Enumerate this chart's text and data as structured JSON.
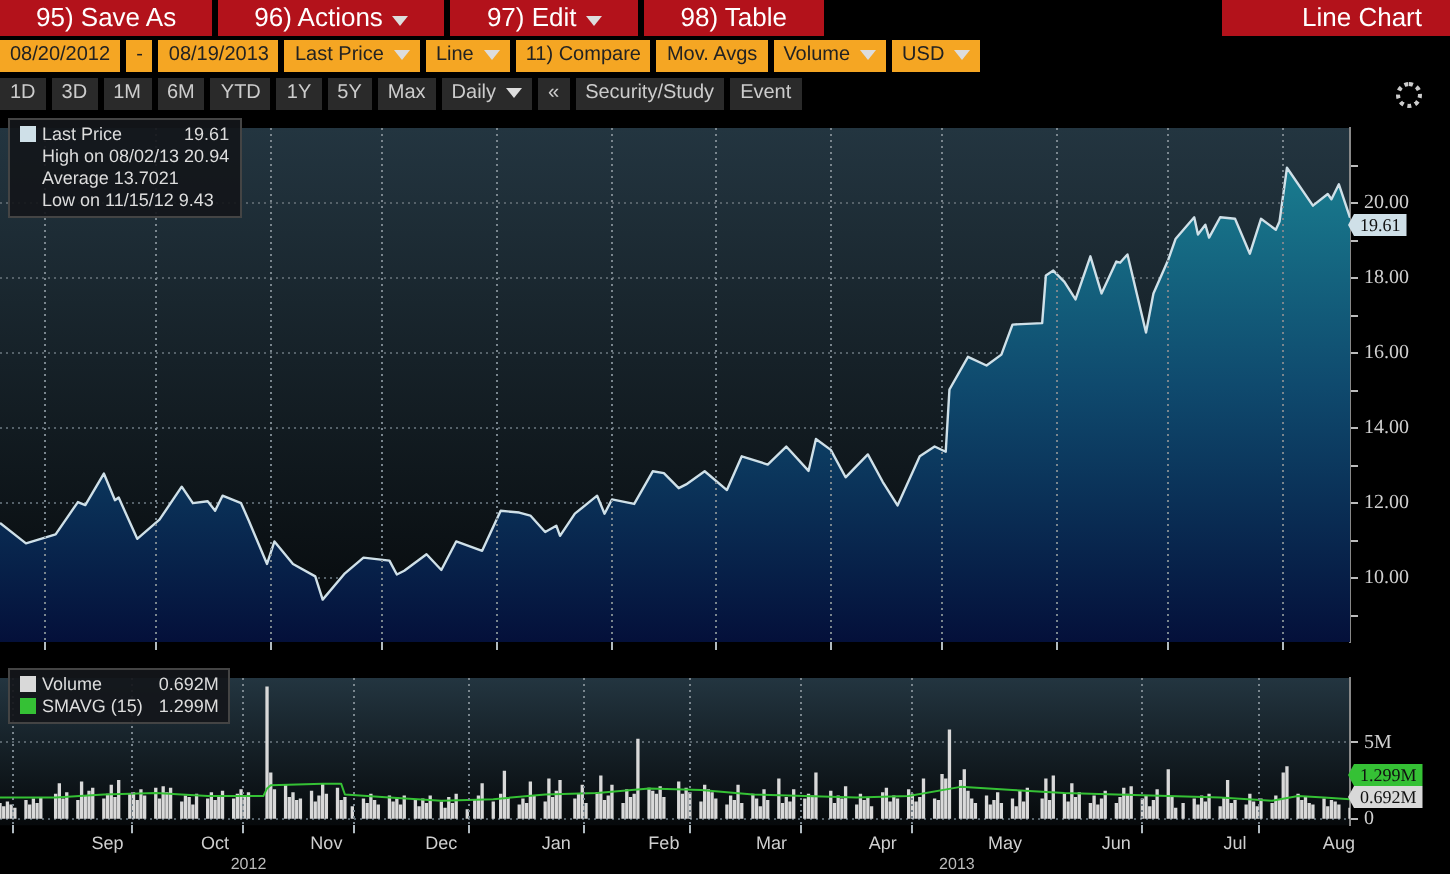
{
  "chart_data": [
    {
      "type": "other",
      "title": "Line Chart",
      "annotations": [
        "95) Save As",
        "96) Actions",
        "97) Edit",
        "98) Table",
        "08/20/2012",
        "-",
        "08/19/2013",
        "Last Price",
        "Line",
        "11) Compare",
        "Mov. Avgs",
        "Volume",
        "USD",
        "1D",
        "3D",
        "1M",
        "6M",
        "YTD",
        "1Y",
        "5Y",
        "Max",
        "Daily",
        "«",
        "Security/Study",
        "Event"
      ]
    },
    {
      "type": "area",
      "legend": "top left",
      "grid": true,
      "tick_labels": "y",
      "x": [
        "2012-08-20",
        "2012-08-27",
        "2012-09-04",
        "2012-09-10",
        "2012-09-12",
        "2012-09-17",
        "2012-09-20",
        "2012-09-21",
        "2012-09-26",
        "2012-10-02",
        "2012-10-08",
        "2012-10-11",
        "2012-10-15",
        "2012-10-17",
        "2012-10-19",
        "2012-10-24",
        "2012-10-26",
        "2012-10-31",
        "2012-11-02",
        "2012-11-07",
        "2012-11-13",
        "2012-11-15",
        "2012-11-21",
        "2012-11-26",
        "2012-12-03",
        "2012-12-05",
        "2012-12-07",
        "2012-12-13",
        "2012-12-17",
        "2012-12-21",
        "2012-12-28",
        "2013-01-02",
        "2013-01-07",
        "2013-01-10",
        "2013-01-14",
        "2013-01-17",
        "2013-01-18",
        "2013-01-22",
        "2013-01-28",
        "2013-01-30",
        "2013-02-01",
        "2013-02-07",
        "2013-02-12",
        "2013-02-15",
        "2013-02-19",
        "2013-02-21",
        "2013-02-26",
        "2013-03-04",
        "2013-03-08",
        "2013-03-15",
        "2013-03-20",
        "2013-03-26",
        "2013-03-28",
        "2013-04-01",
        "2013-04-05",
        "2013-04-11",
        "2013-04-15",
        "2013-04-19",
        "2013-04-25",
        "2013-04-29",
        "2013-05-02",
        "2013-05-03",
        "2013-05-08",
        "2013-05-13",
        "2013-05-17",
        "2013-05-20",
        "2013-05-28",
        "2013-05-29",
        "2013-05-31",
        "2013-06-03",
        "2013-06-06",
        "2013-06-10",
        "2013-06-13",
        "2013-06-17",
        "2013-06-18",
        "2013-06-20",
        "2013-06-25",
        "2013-06-27",
        "2013-07-01",
        "2013-07-03",
        "2013-07-08",
        "2013-07-09",
        "2013-07-11",
        "2013-07-12",
        "2013-07-15",
        "2013-07-19",
        "2013-07-23",
        "2013-07-26",
        "2013-07-30",
        "2013-07-31",
        "2013-08-02",
        "2013-08-09",
        "2013-08-13",
        "2013-08-14",
        "2013-08-16",
        "2013-08-19"
      ],
      "series": [
        {
          "name": "Last Price",
          "color": "#cfe0e8",
          "values": [
            11.47,
            10.93,
            11.17,
            12.03,
            11.95,
            12.79,
            12.08,
            12.15,
            11.05,
            11.56,
            12.44,
            12.0,
            12.05,
            11.8,
            12.2,
            12.0,
            11.55,
            10.38,
            10.98,
            10.38,
            10.05,
            9.43,
            10.13,
            10.55,
            10.47,
            10.1,
            10.2,
            10.64,
            10.22,
            10.98,
            10.73,
            11.8,
            11.75,
            11.67,
            11.23,
            11.4,
            11.13,
            11.72,
            12.2,
            11.72,
            12.1,
            11.98,
            12.85,
            12.8,
            12.4,
            12.5,
            12.85,
            12.35,
            13.25,
            13.03,
            13.51,
            12.86,
            13.71,
            13.42,
            12.69,
            13.3,
            12.57,
            11.94,
            13.25,
            13.51,
            13.37,
            15.03,
            15.9,
            15.67,
            15.96,
            16.76,
            16.8,
            18.07,
            18.2,
            17.9,
            17.43,
            18.58,
            17.59,
            18.44,
            18.41,
            18.63,
            16.55,
            17.59,
            18.49,
            19.05,
            19.62,
            19.16,
            19.42,
            19.08,
            19.62,
            19.58,
            18.65,
            19.58,
            19.29,
            19.51,
            20.94,
            19.93,
            20.24,
            20.1,
            20.5,
            19.61
          ]
        }
      ],
      "xlim": [
        "2012-08-20",
        "2013-08-19"
      ],
      "xticks": [
        {
          "value": "2012-09-01",
          "label": null
        },
        {
          "value": "2012-10-01",
          "label": null
        },
        {
          "value": "2012-11-01",
          "label": null
        },
        {
          "value": "2012-12-01",
          "label": null
        },
        {
          "value": "2013-01-01",
          "label": null
        },
        {
          "value": "2013-02-01",
          "label": null
        },
        {
          "value": "2013-03-01",
          "label": null
        },
        {
          "value": "2013-04-01",
          "label": null
        },
        {
          "value": "2013-05-01",
          "label": null
        },
        {
          "value": "2013-06-01",
          "label": null
        },
        {
          "value": "2013-07-01",
          "label": null
        },
        {
          "value": "2013-08-01",
          "label": null
        }
      ],
      "ylim": [
        8.3,
        22.0
      ],
      "yticks": [
        {
          "value": 9,
          "label": null
        },
        {
          "value": 10,
          "label": "10.00"
        },
        {
          "value": 11,
          "label": null
        },
        {
          "value": 12,
          "label": "12.00"
        },
        {
          "value": 13,
          "label": null
        },
        {
          "value": 14,
          "label": "14.00"
        },
        {
          "value": 15,
          "label": null
        },
        {
          "value": 16,
          "label": "16.00"
        },
        {
          "value": 17,
          "label": null
        },
        {
          "value": 18,
          "label": "18.00"
        },
        {
          "value": 19,
          "label": null
        },
        {
          "value": 20,
          "label": "20.00"
        },
        {
          "value": 21,
          "label": null
        }
      ],
      "annotations": [
        {
          "text": "19.61",
          "x": "2013-08-19",
          "y": 19.61
        },
        "19.61",
        "High on 08/02/13 20.94",
        "Average 13.7021",
        "Low on 11/15/12 9.43"
      ]
    },
    {
      "type": "bar",
      "legend": "top left",
      "grid": true,
      "x": [
        "2012-08-20",
        "2012-08-21",
        "2012-08-22",
        "2012-08-23",
        "2012-08-24",
        "2012-08-27",
        "2012-08-28",
        "2012-08-29",
        "2012-08-30",
        "2012-08-31",
        "2012-09-04",
        "2012-09-05",
        "2012-09-06",
        "2012-09-07",
        "2012-09-10",
        "2012-09-11",
        "2012-09-12",
        "2012-09-13",
        "2012-09-14",
        "2012-09-17",
        "2012-09-18",
        "2012-09-19",
        "2012-09-20",
        "2012-09-21",
        "2012-09-24",
        "2012-09-25",
        "2012-09-26",
        "2012-09-27",
        "2012-09-28",
        "2012-10-01",
        "2012-10-02",
        "2012-10-03",
        "2012-10-04",
        "2012-10-05",
        "2012-10-08",
        "2012-10-09",
        "2012-10-10",
        "2012-10-11",
        "2012-10-12",
        "2012-10-15",
        "2012-10-16",
        "2012-10-17",
        "2012-10-18",
        "2012-10-19",
        "2012-10-22",
        "2012-10-23",
        "2012-10-24",
        "2012-10-25",
        "2012-10-26",
        "2012-10-31",
        "2012-11-01",
        "2012-11-02",
        "2012-11-05",
        "2012-11-06",
        "2012-11-07",
        "2012-11-08",
        "2012-11-09",
        "2012-11-12",
        "2012-11-13",
        "2012-11-14",
        "2012-11-15",
        "2012-11-16",
        "2012-11-19",
        "2012-11-20",
        "2012-11-21",
        "2012-11-23",
        "2012-11-26",
        "2012-11-27",
        "2012-11-28",
        "2012-11-29",
        "2012-11-30",
        "2012-12-03",
        "2012-12-04",
        "2012-12-05",
        "2012-12-06",
        "2012-12-07",
        "2012-12-10",
        "2012-12-11",
        "2012-12-12",
        "2012-12-13",
        "2012-12-14",
        "2012-12-17",
        "2012-12-18",
        "2012-12-19",
        "2012-12-20",
        "2012-12-21",
        "2012-12-24",
        "2012-12-26",
        "2012-12-27",
        "2012-12-28",
        "2012-12-31",
        "2013-01-02",
        "2013-01-03",
        "2013-01-04",
        "2013-01-07",
        "2013-01-08",
        "2013-01-09",
        "2013-01-10",
        "2013-01-11",
        "2013-01-14",
        "2013-01-15",
        "2013-01-16",
        "2013-01-17",
        "2013-01-18",
        "2013-01-22",
        "2013-01-23",
        "2013-01-24",
        "2013-01-25",
        "2013-01-28",
        "2013-01-29",
        "2013-01-30",
        "2013-01-31",
        "2013-02-01",
        "2013-02-04",
        "2013-02-05",
        "2013-02-06",
        "2013-02-07",
        "2013-02-08",
        "2013-02-11",
        "2013-02-12",
        "2013-02-13",
        "2013-02-14",
        "2013-02-15",
        "2013-02-19",
        "2013-02-20",
        "2013-02-21",
        "2013-02-22",
        "2013-02-25",
        "2013-02-26",
        "2013-02-27",
        "2013-02-28",
        "2013-03-01",
        "2013-03-04",
        "2013-03-05",
        "2013-03-06",
        "2013-03-07",
        "2013-03-08",
        "2013-03-11",
        "2013-03-12",
        "2013-03-13",
        "2013-03-14",
        "2013-03-15",
        "2013-03-18",
        "2013-03-19",
        "2013-03-20",
        "2013-03-21",
        "2013-03-22",
        "2013-03-25",
        "2013-03-26",
        "2013-03-27",
        "2013-03-28",
        "2013-04-01",
        "2013-04-02",
        "2013-04-03",
        "2013-04-04",
        "2013-04-05",
        "2013-04-08",
        "2013-04-09",
        "2013-04-10",
        "2013-04-11",
        "2013-04-12",
        "2013-04-15",
        "2013-04-16",
        "2013-04-17",
        "2013-04-18",
        "2013-04-19",
        "2013-04-22",
        "2013-04-23",
        "2013-04-24",
        "2013-04-25",
        "2013-04-26",
        "2013-04-29",
        "2013-04-30",
        "2013-05-01",
        "2013-05-02",
        "2013-05-03",
        "2013-05-06",
        "2013-05-07",
        "2013-05-08",
        "2013-05-09",
        "2013-05-10",
        "2013-05-13",
        "2013-05-14",
        "2013-05-15",
        "2013-05-16",
        "2013-05-17",
        "2013-05-20",
        "2013-05-21",
        "2013-05-22",
        "2013-05-23",
        "2013-05-24",
        "2013-05-28",
        "2013-05-29",
        "2013-05-30",
        "2013-05-31",
        "2013-06-03",
        "2013-06-04",
        "2013-06-05",
        "2013-06-06",
        "2013-06-07",
        "2013-06-10",
        "2013-06-11",
        "2013-06-12",
        "2013-06-13",
        "2013-06-14",
        "2013-06-17",
        "2013-06-18",
        "2013-06-19",
        "2013-06-20",
        "2013-06-21",
        "2013-06-24",
        "2013-06-25",
        "2013-06-26",
        "2013-06-27",
        "2013-06-28",
        "2013-07-01",
        "2013-07-02",
        "2013-07-03",
        "2013-07-05",
        "2013-07-08",
        "2013-07-09",
        "2013-07-10",
        "2013-07-11",
        "2013-07-12",
        "2013-07-15",
        "2013-07-16",
        "2013-07-17",
        "2013-07-18",
        "2013-07-19",
        "2013-07-22",
        "2013-07-23",
        "2013-07-24",
        "2013-07-25",
        "2013-07-26",
        "2013-07-29",
        "2013-07-30",
        "2013-07-31",
        "2013-08-01",
        "2013-08-02",
        "2013-08-05",
        "2013-08-06",
        "2013-08-07",
        "2013-08-08",
        "2013-08-09",
        "2013-08-12",
        "2013-08-13",
        "2013-08-14",
        "2013-08-15",
        "2013-08-16",
        "2013-08-19"
      ],
      "series": [
        {
          "name": "Volume",
          "color": "#d9d9d9",
          "values": [
            1.0,
            0.8,
            1.1,
            0.9,
            0.7,
            1.2,
            0.9,
            1.3,
            1.0,
            1.4,
            1.6,
            2.3,
            1.3,
            1.7,
            1.2,
            2.4,
            1.5,
            1.8,
            2.0,
            1.3,
            1.6,
            2.2,
            1.4,
            2.5,
            1.6,
            1.7,
            1.2,
            1.9,
            1.5,
            2.0,
            1.3,
            2.1,
            1.7,
            2.0,
            1.1,
            1.5,
            1.4,
            0.9,
            1.6,
            1.3,
            1.7,
            1.2,
            1.5,
            1.8,
            1.3,
            1.6,
            1.9,
            1.4,
            1.7,
            8.6,
            3.0,
            1.9,
            2.2,
            1.4,
            1.7,
            1.2,
            1.3,
            1.8,
            1.1,
            1.5,
            2.3,
            1.6,
            2.0,
            1.2,
            1.4,
            0.8,
            1.3,
            1.0,
            1.6,
            1.2,
            0.9,
            1.5,
            1.1,
            1.4,
            0.9,
            1.5,
            1.2,
            0.8,
            1.3,
            1.0,
            1.5,
            1.1,
            0.7,
            1.4,
            1.0,
            1.6,
            0.6,
            1.2,
            1.5,
            2.3,
            1.1,
            1.6,
            3.1,
            1.4,
            0.9,
            1.3,
            1.0,
            2.4,
            1.5,
            1.1,
            2.6,
            1.4,
            1.8,
            2.5,
            1.3,
            1.6,
            2.2,
            1.0,
            1.7,
            2.8,
            1.2,
            1.5,
            2.2,
            1.0,
            1.9,
            1.4,
            1.6,
            5.2,
            2.0,
            1.8,
            1.6,
            2.1,
            1.4,
            2.4,
            1.6,
            2.0,
            1.7,
            1.1,
            2.2,
            1.9,
            1.7,
            1.3,
            0.9,
            1.5,
            1.2,
            2.2,
            1.0,
            1.6,
            1.3,
            0.8,
            1.9,
            1.2,
            2.6,
            1.0,
            1.4,
            1.1,
            1.9,
            1.3,
            1.6,
            1.5,
            3.0,
            1.8,
            1.0,
            1.5,
            1.3,
            2.1,
            0.9,
            1.6,
            1.2,
            1.4,
            0.8,
            1.7,
            2.0,
            1.1,
            1.5,
            1.3,
            1.9,
            1.6,
            1.1,
            1.4,
            2.6,
            1.3,
            1.2,
            2.9,
            2.6,
            5.8,
            2.5,
            3.2,
            1.8,
            1.3,
            1.0,
            1.5,
            0.9,
            1.2,
            1.7,
            1.0,
            1.3,
            0.8,
            1.8,
            1.1,
            2.0,
            1.3,
            2.6,
            1.2,
            2.8,
            1.6,
            1.1,
            2.3,
            1.4,
            1.7,
            1.0,
            1.5,
            0.9,
            1.3,
            1.8,
            1.0,
            1.4,
            2.0,
            1.6,
            2.1,
            1.3,
            1.5,
            0.8,
            1.2,
            1.9,
            3.2,
            1.4,
            0.7,
            1.0,
            1.3,
            0.9,
            1.5,
            1.1,
            1.6,
            0.8,
            1.4,
            2.5,
            1.0,
            1.2,
            0.9,
            1.6,
            1.1,
            0.8,
            1.3,
            1.0,
            1.5,
            1.2,
            3.0,
            3.4,
            1.6,
            1.2,
            1.4,
            1.0,
            0.9,
            1.3,
            0.8,
            1.2,
            1.1,
            0.9,
            0.692
          ]
        },
        {
          "name": "SMAVG (15)",
          "type": "line",
          "color": "#35c135",
          "x": [
            "2012-08-20",
            "2012-09-04",
            "2012-09-17",
            "2012-10-01",
            "2012-10-15",
            "2012-10-30",
            "2012-10-31",
            "2012-11-01",
            "2012-11-15",
            "2012-11-20",
            "2012-11-21",
            "2012-12-03",
            "2012-12-17",
            "2012-12-31",
            "2013-01-14",
            "2013-01-28",
            "2013-02-11",
            "2013-02-25",
            "2013-03-11",
            "2013-03-25",
            "2013-04-08",
            "2013-04-22",
            "2013-05-06",
            "2013-05-20",
            "2013-06-03",
            "2013-06-17",
            "2013-07-01",
            "2013-07-15",
            "2013-07-29",
            "2013-08-05",
            "2013-08-12",
            "2013-08-19"
          ],
          "values": [
            1.4,
            1.4,
            1.6,
            1.7,
            1.5,
            1.5,
            2.0,
            2.2,
            2.3,
            2.3,
            1.6,
            1.4,
            1.2,
            1.3,
            1.6,
            1.7,
            2.0,
            1.9,
            1.6,
            1.5,
            1.4,
            1.5,
            2.1,
            1.9,
            1.7,
            1.6,
            1.5,
            1.4,
            1.2,
            1.5,
            1.4,
            1.299
          ]
        }
      ],
      "xlim": [
        "2012-08-20",
        "2013-08-19"
      ],
      "xticks": [
        {
          "value": "2012-09-01",
          "label": null
        },
        {
          "value": "2012-09-18",
          "label": "Sep"
        },
        {
          "value": "2012-10-01",
          "label": null
        },
        {
          "value": "2012-10-17",
          "label": "Oct"
        },
        {
          "value": "2012-11-01",
          "label": null
        },
        {
          "value": "2012-11-16",
          "label": "Nov"
        },
        {
          "value": "2012-12-01",
          "label": null
        },
        {
          "value": "2012-12-17",
          "label": "Dec"
        },
        {
          "value": "2013-01-01",
          "label": null
        },
        {
          "value": "2013-01-17",
          "label": "Jan"
        },
        {
          "value": "2013-02-01",
          "label": null
        },
        {
          "value": "2013-02-15",
          "label": "Feb"
        },
        {
          "value": "2013-03-01",
          "label": null
        },
        {
          "value": "2013-03-16",
          "label": "Mar"
        },
        {
          "value": "2013-04-01",
          "label": null
        },
        {
          "value": "2013-04-15",
          "label": "Apr"
        },
        {
          "value": "2013-05-01",
          "label": null
        },
        {
          "value": "2013-05-18",
          "label": "May"
        },
        {
          "value": "2013-06-17",
          "label": "Jun"
        },
        {
          "value": "2013-07-01",
          "label": null
        },
        {
          "value": "2013-07-19",
          "label": "Jul"
        },
        {
          "value": "2013-08-01",
          "label": null
        },
        {
          "value": "2013-08-16",
          "label": "Aug"
        }
      ],
      "x2lim": [
        "2012-08-20",
        "2013-08-19"
      ],
      "x2ticks": [
        {
          "value": "2012-10-26",
          "label": "2012"
        },
        {
          "value": "2013-05-05",
          "label": "2013"
        }
      ],
      "ylim": [
        -0.4,
        9.2
      ],
      "yticks": [
        {
          "value": 0,
          "label": "0"
        },
        {
          "value": 5,
          "label": "5M"
        }
      ],
      "annotations": [
        {
          "text": "0.692M",
          "x": "2013-08-19",
          "y": 0.692
        },
        {
          "text": "1.299M",
          "x": "2013-08-19",
          "y": 1.299
        },
        "0.692M",
        "1.299M"
      ]
    }
  ]
}
